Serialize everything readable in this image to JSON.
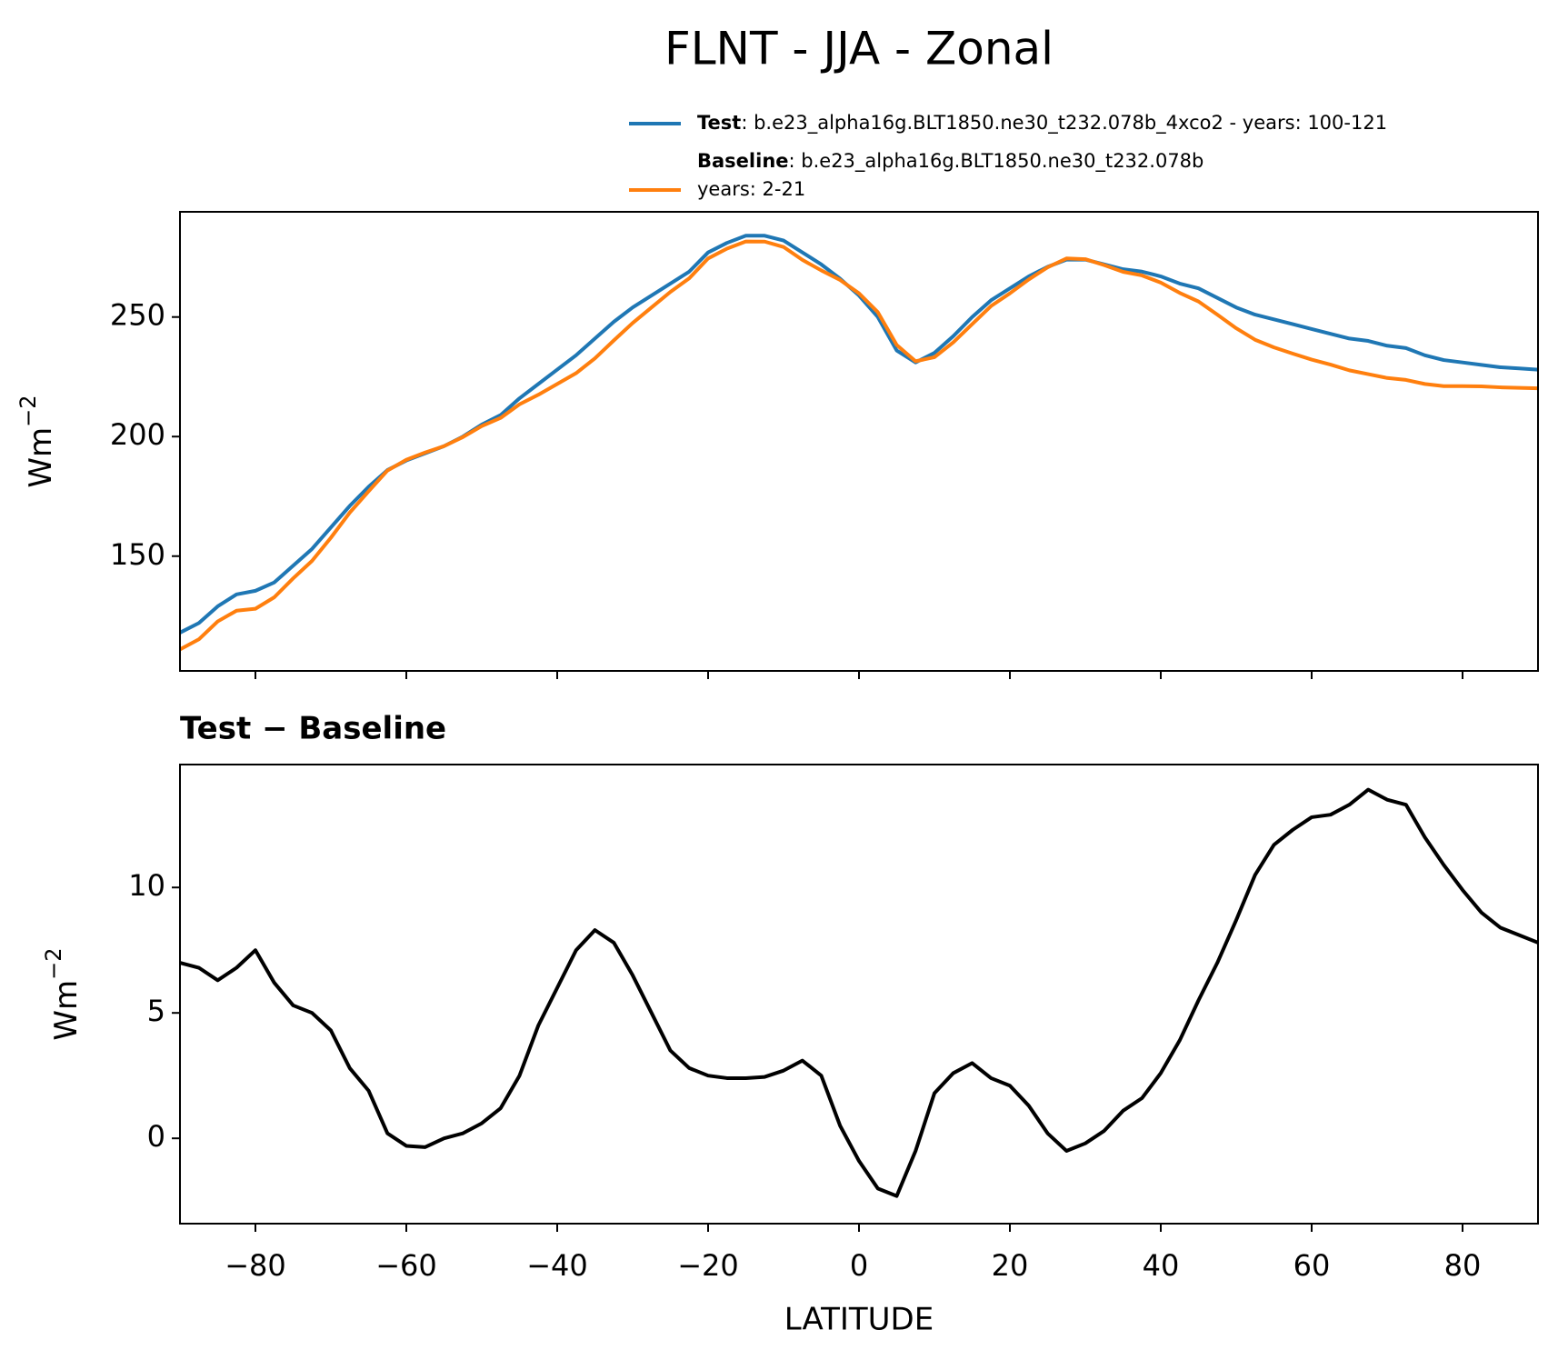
{
  "title": "FLNT - JJA - Zonal",
  "chart_data": [
    {
      "type": "line",
      "ylabel": "Wm",
      "ylabel_exponent": "−2",
      "xlim": [
        -90,
        90
      ],
      "xticks": [
        -80,
        -60,
        -40,
        -20,
        0,
        20,
        40,
        60,
        80
      ],
      "xticklabels": false,
      "ylim": [
        102,
        294
      ],
      "yticks": [
        150,
        200,
        250
      ],
      "x": [
        -90,
        -87.5,
        -85,
        -82.5,
        -80,
        -77.5,
        -75,
        -72.5,
        -70,
        -67.5,
        -65,
        -62.5,
        -60,
        -57.5,
        -55,
        -52.5,
        -50,
        -47.5,
        -45,
        -42.5,
        -40,
        -37.5,
        -35,
        -32.5,
        -30,
        -27.5,
        -25,
        -22.5,
        -20,
        -17.5,
        -15,
        -12.5,
        -10,
        -7.5,
        -5,
        -2.5,
        0,
        2.5,
        5,
        7.5,
        10,
        12.5,
        15,
        17.5,
        20,
        22.5,
        25,
        27.5,
        30,
        32.5,
        35,
        37.5,
        40,
        42.5,
        45,
        47.5,
        50,
        52.5,
        55,
        57.5,
        60,
        62.5,
        65,
        67.5,
        70,
        72.5,
        75,
        77.5,
        80,
        82.5,
        85,
        87.5,
        90
      ],
      "series": [
        {
          "name": "Test",
          "legend_lines": [
            ": b.e23_alpha16g.BLT1850.ne30_t232.078b_4xco2 - years: 100-121"
          ],
          "color": "#1f77b4",
          "values": [
            118,
            122,
            129,
            134,
            135.5,
            139,
            146,
            153,
            162,
            171,
            179,
            186,
            190,
            193,
            196,
            200,
            205,
            209,
            216,
            222,
            228,
            234,
            241,
            248,
            254,
            259,
            264,
            269,
            277,
            281,
            284,
            284,
            282,
            277,
            272,
            266,
            259,
            250,
            236,
            231,
            235,
            242,
            250,
            257,
            262,
            267,
            271,
            274,
            274,
            272,
            270,
            269,
            267,
            264,
            262,
            258,
            254,
            251,
            249,
            247,
            245,
            243,
            241,
            240,
            238,
            237,
            234,
            232,
            231,
            230,
            229,
            228.5,
            228
          ]
        },
        {
          "name": "Baseline",
          "legend_lines": [
            ": b.e23_alpha16g.BLT1850.ne30_t232.078b",
            "years: 2-21"
          ],
          "color": "#ff7f0e",
          "values": [
            111,
            115.2,
            122.7,
            127.2,
            128,
            132.8,
            140.7,
            148,
            157.7,
            168.2,
            177.1,
            185.8,
            190.3,
            193.35,
            196,
            199.8,
            204.4,
            207.8,
            213.5,
            217.5,
            222,
            226.5,
            232.7,
            240.2,
            247.5,
            254,
            260.5,
            266.2,
            274.5,
            278.6,
            281.6,
            281.55,
            279.3,
            273.9,
            269.5,
            265.5,
            259.9,
            252,
            238.3,
            231.5,
            233.2,
            239.4,
            247,
            254.6,
            259.9,
            265.7,
            270.8,
            274.5,
            274.2,
            271.7,
            268.9,
            267.4,
            264.4,
            260.1,
            256.5,
            251,
            245.3,
            240.5,
            237.3,
            234.7,
            232.2,
            230.1,
            227.7,
            226.1,
            224.5,
            223.7,
            222,
            221.1,
            221.1,
            221,
            220.6,
            220.4,
            220.2
          ]
        }
      ]
    },
    {
      "type": "line",
      "title": "Test − Baseline",
      "xlabel": "LATITUDE",
      "ylabel": "Wm",
      "ylabel_exponent": "−2",
      "xlim": [
        -90,
        90
      ],
      "xticks": [
        {
          "value": -80,
          "label": "−80"
        },
        {
          "value": -60,
          "label": "−60"
        },
        {
          "value": -40,
          "label": "−40"
        },
        {
          "value": -20,
          "label": "−20"
        },
        0,
        20,
        40,
        60,
        80
      ],
      "xticklabels": true,
      "ylim": [
        -3.4,
        14.9
      ],
      "yticks": [
        0,
        5,
        10
      ],
      "x": [
        -90,
        -87.5,
        -85,
        -82.5,
        -80,
        -77.5,
        -75,
        -72.5,
        -70,
        -67.5,
        -65,
        -62.5,
        -60,
        -57.5,
        -55,
        -52.5,
        -50,
        -47.5,
        -45,
        -42.5,
        -40,
        -37.5,
        -35,
        -32.5,
        -30,
        -27.5,
        -25,
        -22.5,
        -20,
        -17.5,
        -15,
        -12.5,
        -10,
        -7.5,
        -5,
        -2.5,
        0,
        2.5,
        5,
        7.5,
        10,
        12.5,
        15,
        17.5,
        20,
        22.5,
        25,
        27.5,
        30,
        32.5,
        35,
        37.5,
        40,
        42.5,
        45,
        47.5,
        50,
        52.5,
        55,
        57.5,
        60,
        62.5,
        65,
        67.5,
        70,
        72.5,
        75,
        77.5,
        80,
        82.5,
        85,
        87.5,
        90
      ],
      "series": [
        {
          "color": "#000000",
          "values": [
            7.0,
            6.8,
            6.3,
            6.8,
            7.5,
            6.2,
            5.3,
            5.0,
            4.3,
            2.8,
            1.9,
            0.2,
            -0.3,
            -0.35,
            0.0,
            0.2,
            0.6,
            1.2,
            2.5,
            4.5,
            6.0,
            7.5,
            8.3,
            7.8,
            6.5,
            5.0,
            3.5,
            2.8,
            2.5,
            2.4,
            2.4,
            2.45,
            2.7,
            3.1,
            2.5,
            0.5,
            -0.9,
            -2.0,
            -2.3,
            -0.5,
            1.8,
            2.6,
            3.0,
            2.4,
            2.1,
            1.3,
            0.2,
            -0.5,
            -0.2,
            0.3,
            1.1,
            1.6,
            2.6,
            3.9,
            5.5,
            7.0,
            8.7,
            10.5,
            11.7,
            12.3,
            12.8,
            12.9,
            13.3,
            13.9,
            13.5,
            13.3,
            12.0,
            10.9,
            9.9,
            9.0,
            8.4,
            8.1,
            7.8
          ]
        }
      ]
    }
  ]
}
